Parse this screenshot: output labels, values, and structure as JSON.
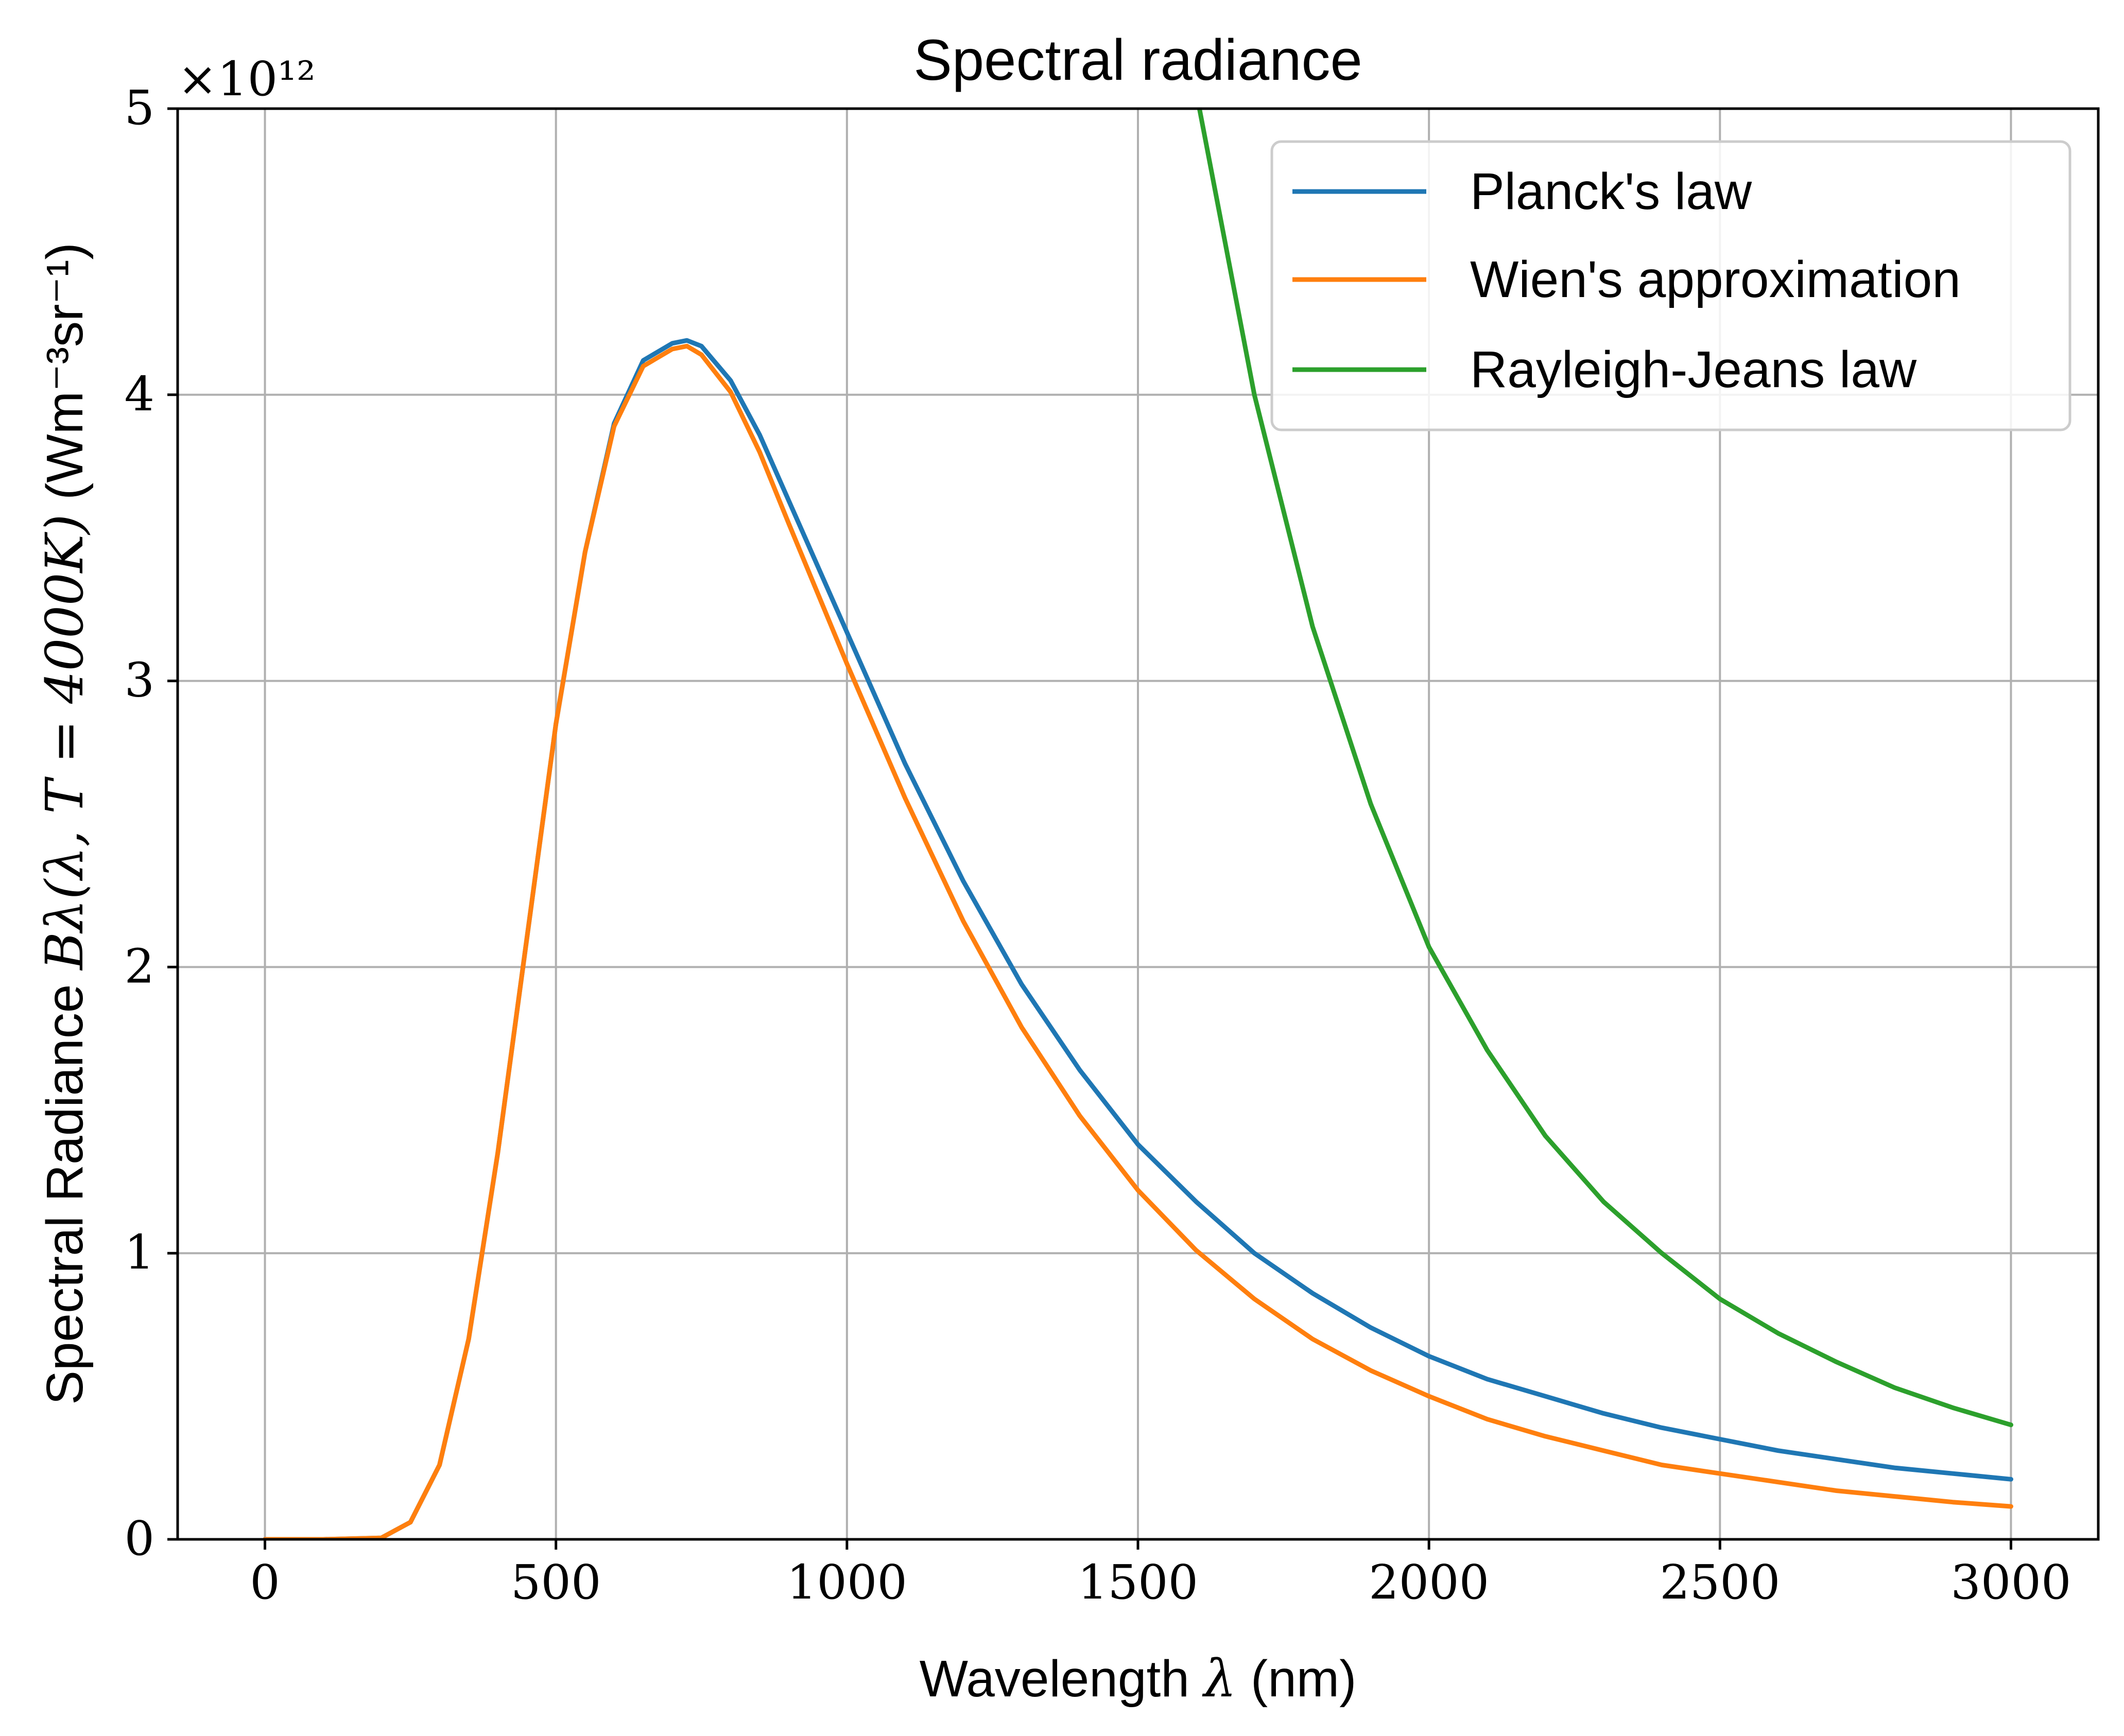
{
  "chart_data": {
    "type": "line",
    "title": "Spectral radiance",
    "xlabel": {
      "prefix": "Wavelength ",
      "symbol": "λ",
      "suffix": " (nm)"
    },
    "ylabel": {
      "prefix": "Spectral Radiance ",
      "math": "Bλ(λ, T = 4000K)",
      "units": "(Wm⁻³sr⁻¹)"
    },
    "y_multiplier": "×10¹²",
    "xlim": [
      -150,
      3150
    ],
    "ylim": [
      0,
      5
    ],
    "x_ticks": [
      0,
      500,
      1000,
      1500,
      2000,
      2500,
      3000
    ],
    "y_ticks": [
      0,
      1,
      2,
      3,
      4,
      5
    ],
    "grid": true,
    "legend_position": "top-right",
    "x": [
      0,
      100,
      200,
      250,
      300,
      350,
      400,
      450,
      500,
      550,
      600,
      650,
      700,
      725,
      750,
      800,
      850,
      900,
      1000,
      1100,
      1200,
      1300,
      1400,
      1500,
      1600,
      1700,
      1800,
      1900,
      2000,
      2100,
      2200,
      2300,
      2400,
      2500,
      2600,
      2700,
      2800,
      2900,
      3000
    ],
    "series": [
      {
        "name": "Planck's law",
        "color": "#1f77b4",
        "values": [
          0,
          0,
          0.005,
          0.06,
          0.26,
          0.7,
          1.35,
          2.1,
          2.85,
          3.45,
          3.9,
          4.12,
          4.18,
          4.19,
          4.17,
          4.05,
          3.86,
          3.63,
          3.17,
          2.71,
          2.3,
          1.94,
          1.64,
          1.38,
          1.18,
          1.0,
          0.86,
          0.74,
          0.64,
          0.56,
          0.5,
          0.44,
          0.39,
          0.35,
          0.31,
          0.28,
          0.25,
          0.23,
          0.21
        ]
      },
      {
        "name": "Wien's approximation",
        "color": "#ff7f0e",
        "values": [
          0,
          0,
          0.005,
          0.06,
          0.26,
          0.7,
          1.35,
          2.1,
          2.85,
          3.45,
          3.89,
          4.1,
          4.16,
          4.17,
          4.14,
          4.01,
          3.8,
          3.55,
          3.06,
          2.59,
          2.16,
          1.79,
          1.48,
          1.22,
          1.01,
          0.84,
          0.7,
          0.59,
          0.5,
          0.42,
          0.36,
          0.31,
          0.26,
          0.23,
          0.2,
          0.17,
          0.15,
          0.13,
          0.115
        ]
      },
      {
        "name": "Rayleigh-Jeans law",
        "color": "#2ca02c",
        "values": [
          null,
          null,
          null,
          null,
          null,
          null,
          null,
          null,
          null,
          null,
          null,
          null,
          null,
          null,
          null,
          null,
          null,
          null,
          null,
          null,
          null,
          null,
          null,
          null,
          5.06,
          4.0,
          3.19,
          2.57,
          2.07,
          1.71,
          1.41,
          1.18,
          1.0,
          0.84,
          0.72,
          0.62,
          0.53,
          0.46,
          0.4
        ]
      }
    ]
  }
}
